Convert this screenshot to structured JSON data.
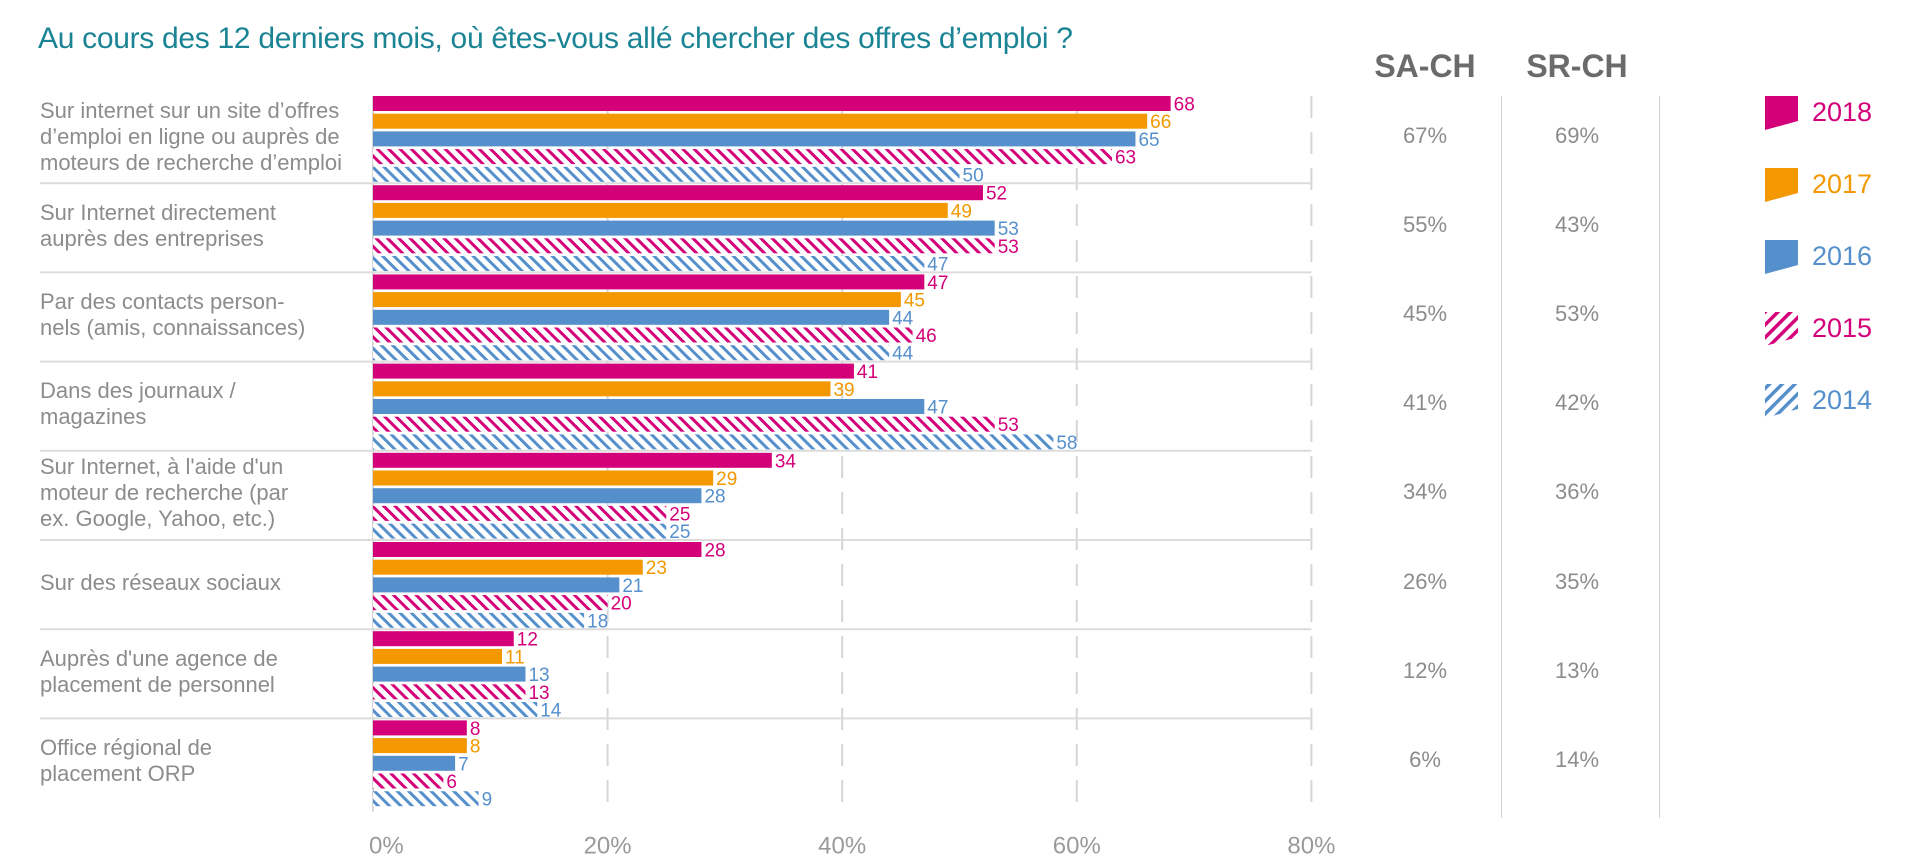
{
  "title": "Au cours des 12 derniers mois, où êtes-vous allé chercher des offres d’emploi ?",
  "colors": {
    "2018": "#d4007a",
    "2017": "#f39800",
    "2016": "#5590cc",
    "2015": "#d4007a",
    "2014": "#5590cc",
    "title": "#1a8494",
    "text": "#8c8c8c",
    "header": "#6b6b6b",
    "grid": "#d0d0d0"
  },
  "legend": [
    {
      "label": "2018",
      "style": "solid"
    },
    {
      "label": "2017",
      "style": "solid"
    },
    {
      "label": "2016",
      "style": "solid"
    },
    {
      "label": "2015",
      "style": "hatched"
    },
    {
      "label": "2014",
      "style": "hatched"
    }
  ],
  "columns": {
    "headers": [
      "SA-CH",
      "SR-CH"
    ],
    "sa_ch": [
      "67%",
      "55%",
      "45%",
      "41%",
      "34%",
      "26%",
      "12%",
      "6%"
    ],
    "sr_ch": [
      "69%",
      "43%",
      "53%",
      "42%",
      "36%",
      "35%",
      "13%",
      "14%"
    ]
  },
  "chart_data": {
    "type": "bar",
    "orientation": "horizontal",
    "title": "Au cours des 12 derniers mois, où êtes-vous allé chercher des offres d’emploi ?",
    "xlabel": "",
    "ylabel": "",
    "xlim": [
      0,
      80
    ],
    "xticks": [
      "0%",
      "20%",
      "40%",
      "60%",
      "80%"
    ],
    "grid": true,
    "legend_position": "right",
    "categories": [
      "Sur internet sur un site d’offres d’emploi en ligne ou auprès de moteurs de recherche d’emploi",
      "Sur Internet directement auprès des entreprises",
      "Par des contacts person-nels (amis, connaissances)",
      "Dans des journaux / magazines",
      "Sur Internet, à l'aide d'un moteur de recherche (par ex. Google, Yahoo, etc.)",
      "Sur des réseaux sociaux",
      "Auprès d'une agence de placement de personnel",
      "Office régional de placement ORP"
    ],
    "category_lines": [
      [
        "Sur internet sur un site d’offres",
        "d’emploi en ligne ou auprès de",
        "moteurs de recherche d’emploi"
      ],
      [
        "Sur Internet directement",
        "auprès des entreprises"
      ],
      [
        "Par des contacts person-",
        "nels (amis, connaissances)"
      ],
      [
        "Dans des journaux /",
        "magazines"
      ],
      [
        "Sur Internet, à l'aide d'un",
        "moteur de recherche (par",
        "ex. Google, Yahoo, etc.)"
      ],
      [
        "Sur des réseaux sociaux"
      ],
      [
        "Auprès d'une agence de",
        "placement de personnel"
      ],
      [
        "Office régional de",
        "placement ORP"
      ]
    ],
    "series": [
      {
        "name": "2018",
        "values": [
          68,
          52,
          47,
          41,
          34,
          28,
          12,
          8
        ]
      },
      {
        "name": "2017",
        "values": [
          66,
          49,
          45,
          39,
          29,
          23,
          11,
          8
        ]
      },
      {
        "name": "2016",
        "values": [
          65,
          53,
          44,
          47,
          28,
          21,
          13,
          7
        ]
      },
      {
        "name": "2015",
        "values": [
          63,
          53,
          46,
          53,
          25,
          20,
          13,
          6
        ]
      },
      {
        "name": "2014",
        "values": [
          50,
          47,
          44,
          58,
          25,
          18,
          14,
          9
        ]
      }
    ]
  }
}
